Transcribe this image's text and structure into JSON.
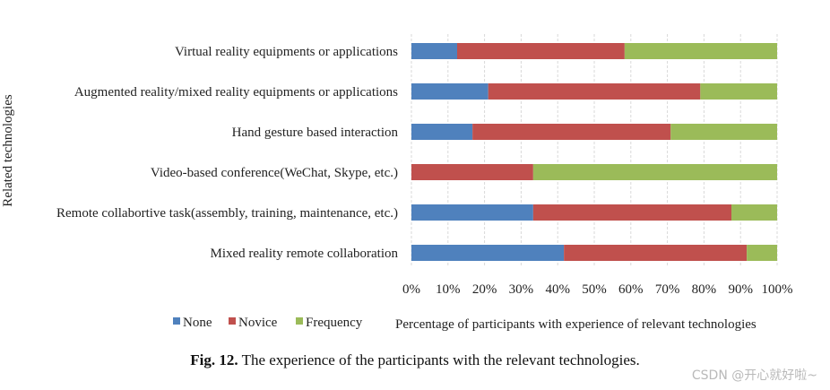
{
  "chart_data": {
    "type": "bar",
    "orientation": "horizontal",
    "stacked": true,
    "categories": [
      "Virtual reality equipments or applications",
      "Augmented reality/mixed reality equipments or applications",
      "Hand gesture based interaction",
      "Video-based conference(WeChat, Skype, etc.)",
      "Remote collabortive task(assembly, training, maintenance, etc.)",
      "Mixed reality remote collaboration"
    ],
    "series": [
      {
        "name": "None",
        "color": "#4f81bd",
        "values": [
          12.5,
          21,
          16.7,
          0,
          33.3,
          41.7
        ]
      },
      {
        "name": "Novice",
        "color": "#c0504d",
        "values": [
          45.8,
          58,
          54.2,
          33.3,
          54.2,
          50
        ]
      },
      {
        "name": "Frequency",
        "color": "#9bbb59",
        "values": [
          41.7,
          21,
          29.1,
          66.7,
          12.5,
          8.3
        ]
      }
    ],
    "xlim": [
      0,
      100
    ],
    "xticks": [
      "0%",
      "10%",
      "20%",
      "30%",
      "40%",
      "50%",
      "60%",
      "70%",
      "80%",
      "90%",
      "100%"
    ],
    "xlabel": "Percentage of participants with experience of relevant technologies",
    "ylabel": "Related technologies",
    "legend_position": "bottom-left",
    "grid": true
  },
  "caption": {
    "label": "Fig. 12.",
    "text": "The experience of the participants with the relevant technologies."
  },
  "watermark": "CSDN @开心就好啦~"
}
